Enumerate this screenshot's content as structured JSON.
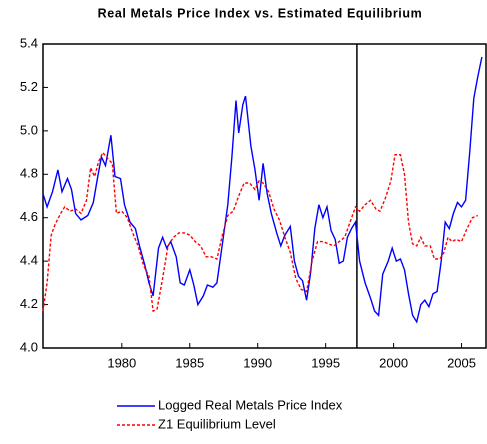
{
  "chart_data": {
    "type": "line",
    "title": "Real Metals Price Index vs. Estimated Equilibrium",
    "xlim": [
      1974.2,
      2006.8
    ],
    "ylim": [
      4.0,
      5.4
    ],
    "xticks": [
      1980,
      1985,
      1990,
      1995,
      2000,
      2005
    ],
    "yticks": [
      {
        "value": 4.0,
        "label": "4.0"
      },
      4.2,
      4.4,
      4.6,
      4.8,
      {
        "value": 5.0,
        "label": "5.0"
      },
      5.2,
      5.4
    ],
    "vertical_line_x": 1997.3,
    "legend": "bottom",
    "series": [
      {
        "name": "Logged Real Metals Price Index",
        "color": "#0000ff",
        "dash": "solid",
        "x": [
          1974.2,
          1974.5,
          1974.9,
          1975.3,
          1975.6,
          1976.0,
          1976.3,
          1976.6,
          1977.0,
          1977.5,
          1977.9,
          1978.2,
          1978.5,
          1978.8,
          1979.2,
          1979.5,
          1979.9,
          1980.2,
          1980.6,
          1981.0,
          1981.3,
          1981.7,
          1982.0,
          1982.3,
          1982.7,
          1983.0,
          1983.3,
          1983.6,
          1984.0,
          1984.3,
          1984.6,
          1985.0,
          1985.3,
          1985.6,
          1986.0,
          1986.3,
          1986.7,
          1987.0,
          1987.4,
          1987.8,
          1988.1,
          1988.4,
          1988.6,
          1988.9,
          1989.1,
          1989.5,
          1989.8,
          1990.1,
          1990.4,
          1990.7,
          1991.0,
          1991.4,
          1991.7,
          1992.0,
          1992.4,
          1992.7,
          1993.0,
          1993.3,
          1993.6,
          1993.9,
          1994.2,
          1994.5,
          1994.8,
          1995.1,
          1995.4,
          1995.7,
          1996.0,
          1996.3,
          1996.6,
          1996.9,
          1997.2,
          1997.5,
          1997.9,
          1998.3,
          1998.6,
          1998.9,
          1999.2,
          1999.6,
          1999.9,
          2000.2,
          2000.5,
          2000.8,
          2001.1,
          2001.4,
          2001.7,
          2002.0,
          2002.3,
          2002.6,
          2002.9,
          2003.2,
          2003.5,
          2003.8,
          2004.1,
          2004.4,
          2004.7,
          2005.0,
          2005.3,
          2005.6,
          2005.9,
          2006.2,
          2006.5
        ],
        "values": [
          4.71,
          4.65,
          4.72,
          4.82,
          4.72,
          4.78,
          4.73,
          4.62,
          4.59,
          4.61,
          4.67,
          4.78,
          4.88,
          4.84,
          4.98,
          4.79,
          4.78,
          4.66,
          4.58,
          4.55,
          4.47,
          4.38,
          4.3,
          4.24,
          4.46,
          4.51,
          4.46,
          4.49,
          4.42,
          4.3,
          4.29,
          4.36,
          4.29,
          4.2,
          4.24,
          4.29,
          4.28,
          4.3,
          4.48,
          4.66,
          4.88,
          5.14,
          4.99,
          5.12,
          5.16,
          4.93,
          4.82,
          4.68,
          4.85,
          4.71,
          4.62,
          4.53,
          4.47,
          4.52,
          4.56,
          4.4,
          4.33,
          4.31,
          4.22,
          4.35,
          4.55,
          4.66,
          4.6,
          4.65,
          4.54,
          4.5,
          4.39,
          4.4,
          4.51,
          4.55,
          4.58,
          4.4,
          4.3,
          4.23,
          4.17,
          4.15,
          4.34,
          4.4,
          4.46,
          4.4,
          4.41,
          4.36,
          4.25,
          4.15,
          4.12,
          4.2,
          4.22,
          4.19,
          4.25,
          4.26,
          4.4,
          4.58,
          4.55,
          4.62,
          4.67,
          4.65,
          4.68,
          4.9,
          5.15,
          5.25,
          5.34
        ]
      },
      {
        "name": "Z1 Equilibrium Level",
        "color": "#ff0000",
        "dash": "dashed",
        "x": [
          1974.2,
          1974.5,
          1974.8,
          1975.1,
          1975.5,
          1975.8,
          1976.2,
          1976.6,
          1977.0,
          1977.4,
          1977.7,
          1978.0,
          1978.3,
          1978.6,
          1979.0,
          1979.3,
          1979.6,
          1980.0,
          1980.4,
          1980.8,
          1981.2,
          1981.6,
          1982.0,
          1982.3,
          1982.6,
          1983.0,
          1983.4,
          1983.8,
          1984.2,
          1984.6,
          1985.0,
          1985.4,
          1985.8,
          1986.2,
          1986.6,
          1987.0,
          1987.4,
          1987.8,
          1988.2,
          1988.6,
          1989.0,
          1989.4,
          1989.8,
          1990.1,
          1990.4,
          1990.8,
          1991.2,
          1991.6,
          1992.0,
          1992.4,
          1992.8,
          1993.2,
          1993.6,
          1994.0,
          1994.4,
          1994.8,
          1995.2,
          1995.6,
          1996.0,
          1996.4,
          1996.8,
          1997.2,
          1997.5,
          1997.9,
          1998.3,
          1998.7,
          1999.0,
          1999.4,
          1999.8,
          2000.1,
          2000.5,
          2000.8,
          2001.1,
          2001.4,
          2001.7,
          2002.0,
          2002.3,
          2002.7,
          2003.0,
          2003.4,
          2003.7,
          2004.0,
          2004.3,
          2004.6,
          2005.0,
          2005.4,
          2005.8,
          2006.2
        ],
        "values": [
          4.17,
          4.3,
          4.52,
          4.57,
          4.62,
          4.65,
          4.63,
          4.64,
          4.62,
          4.68,
          4.83,
          4.79,
          4.86,
          4.9,
          4.87,
          4.85,
          4.62,
          4.63,
          4.6,
          4.53,
          4.47,
          4.38,
          4.33,
          4.17,
          4.18,
          4.32,
          4.47,
          4.51,
          4.53,
          4.53,
          4.52,
          4.49,
          4.47,
          4.42,
          4.42,
          4.41,
          4.52,
          4.61,
          4.63,
          4.7,
          4.76,
          4.76,
          4.73,
          4.77,
          4.76,
          4.72,
          4.64,
          4.59,
          4.51,
          4.44,
          4.32,
          4.27,
          4.26,
          4.4,
          4.49,
          4.49,
          4.48,
          4.47,
          4.49,
          4.51,
          4.58,
          4.65,
          4.63,
          4.66,
          4.68,
          4.64,
          4.63,
          4.69,
          4.77,
          4.89,
          4.89,
          4.8,
          4.58,
          4.48,
          4.47,
          4.51,
          4.47,
          4.47,
          4.41,
          4.41,
          4.44,
          4.51,
          4.49,
          4.5,
          4.49,
          4.55,
          4.6,
          4.61
        ]
      }
    ]
  }
}
